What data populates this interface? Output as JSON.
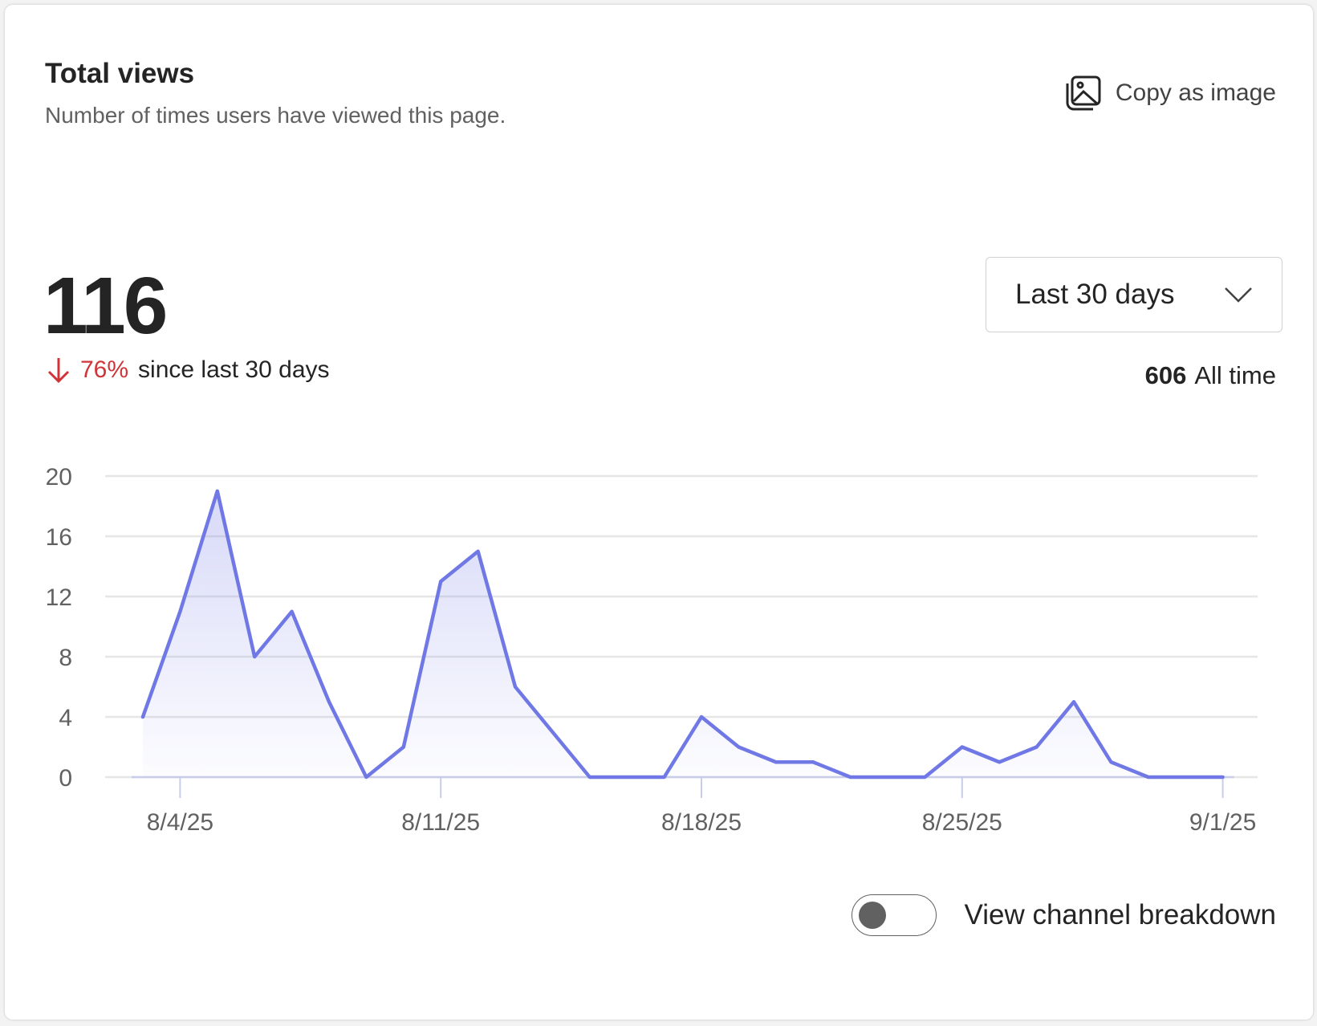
{
  "header": {
    "title": "Total views",
    "subtitle": "Number of times users have viewed this page.",
    "copy_label": "Copy as image",
    "copy_icon": "image-copy-icon"
  },
  "summary": {
    "total": "116",
    "change_icon": "arrow-down-icon",
    "change_pct": "76%",
    "change_text": "since last 30 days",
    "all_time_value": "606",
    "all_time_label": "All time",
    "down_color": "#d13438"
  },
  "range_select": {
    "selected": "Last 30 days"
  },
  "toggle": {
    "label": "View channel breakdown",
    "on": false
  },
  "chart_data": {
    "type": "area",
    "x": [
      "8/3/25",
      "8/4/25",
      "8/5/25",
      "8/6/25",
      "8/7/25",
      "8/8/25",
      "8/9/25",
      "8/10/25",
      "8/11/25",
      "8/12/25",
      "8/13/25",
      "8/14/25",
      "8/15/25",
      "8/16/25",
      "8/17/25",
      "8/18/25",
      "8/19/25",
      "8/20/25",
      "8/21/25",
      "8/22/25",
      "8/23/25",
      "8/24/25",
      "8/25/25",
      "8/26/25",
      "8/27/25",
      "8/28/25",
      "8/29/25",
      "8/30/25",
      "8/31/25",
      "9/1/25"
    ],
    "values": [
      4,
      11,
      19,
      8,
      11,
      5,
      0,
      2,
      13,
      15,
      6,
      3,
      0,
      0,
      0,
      4,
      2,
      1,
      1,
      0,
      0,
      0,
      2,
      1,
      2,
      5,
      1,
      0,
      0,
      0
    ],
    "x_tick_labels": [
      "8/4/25",
      "8/11/25",
      "8/18/25",
      "8/25/25",
      "9/1/25"
    ],
    "y_tick_labels": [
      "0",
      "4",
      "8",
      "12",
      "16",
      "20"
    ],
    "ylim": [
      0,
      20
    ],
    "grid": true,
    "line_color": "#7078e6"
  }
}
